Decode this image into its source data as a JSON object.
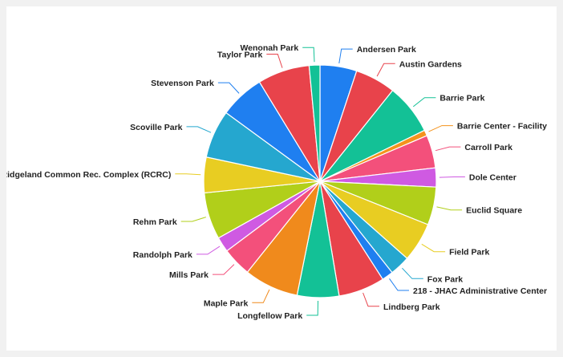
{
  "chart_data": {
    "type": "pie",
    "title": "",
    "legend": "none",
    "slices": [
      {
        "label": "Andersen Park",
        "value": 5.8,
        "color": "#1f7ff0"
      },
      {
        "label": "Austin Gardens",
        "value": 6.4,
        "color": "#e8434b"
      },
      {
        "label": "Barrie Park",
        "value": 8.0,
        "color": "#13c196"
      },
      {
        "label": "Barrie Center - Facility",
        "value": 0.9,
        "color": "#f4931c"
      },
      {
        "label": "Carroll Park",
        "value": 5.2,
        "color": "#f3507b"
      },
      {
        "label": "Dole Center",
        "value": 3.0,
        "color": "#cf5ae2"
      },
      {
        "label": "Euclid Square",
        "value": 6.0,
        "color": "#b1cf1a"
      },
      {
        "label": "Field Park",
        "value": 6.2,
        "color": "#e8cd22"
      },
      {
        "label": "Fox Park",
        "value": 3.2,
        "color": "#25a7cf"
      },
      {
        "label": "218 - JHAC Administrative Center",
        "value": 1.8,
        "color": "#1f7ff0"
      },
      {
        "label": "Lindberg Park",
        "value": 7.3,
        "color": "#e8434b"
      },
      {
        "label": "Longfellow Park",
        "value": 6.6,
        "color": "#13c196"
      },
      {
        "label": "Maple Park",
        "value": 8.6,
        "color": "#f08a1c"
      },
      {
        "label": "Mills Park",
        "value": 4.6,
        "color": "#f3507b"
      },
      {
        "label": "Randolph Park",
        "value": 2.4,
        "color": "#cf5ae2"
      },
      {
        "label": "Rehm Park",
        "value": 7.4,
        "color": "#b1cf1a"
      },
      {
        "label": "Ridgeland Common Rec. Complex (RCRC)",
        "value": 5.6,
        "color": "#e8cd22"
      },
      {
        "label": "Scoville Park",
        "value": 7.6,
        "color": "#25a7cf"
      },
      {
        "label": "Stevenson Park",
        "value": 7.1,
        "color": "#1f7ff0"
      },
      {
        "label": "Taylor Park",
        "value": 8.2,
        "color": "#e8434b"
      },
      {
        "label": "Wenonah Park",
        "value": 1.7,
        "color": "#13c196"
      }
    ]
  }
}
